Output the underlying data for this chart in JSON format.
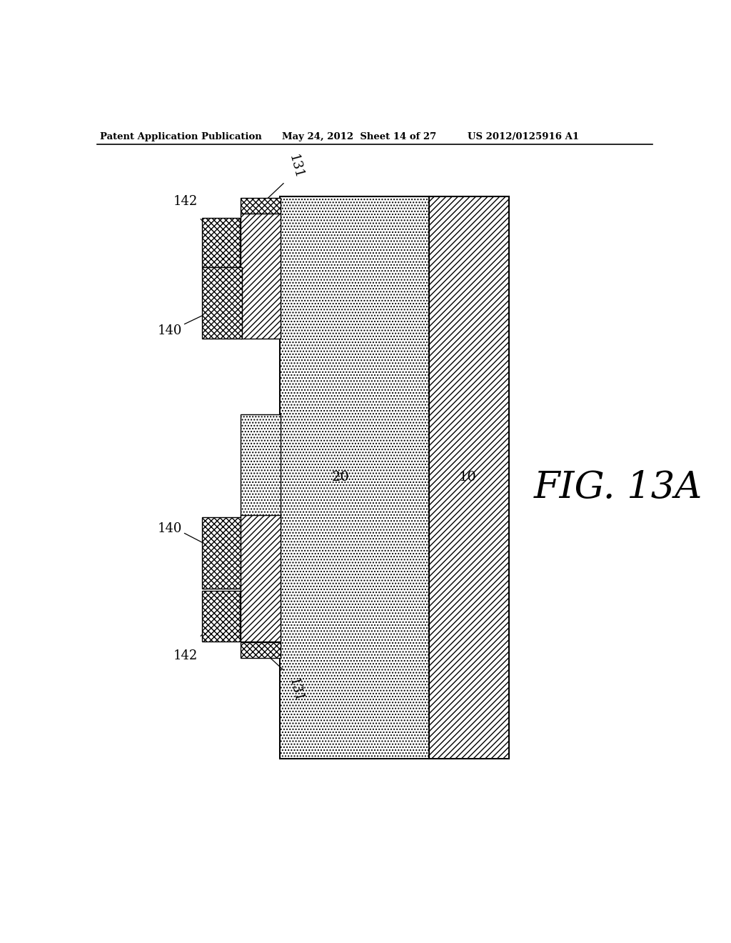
{
  "header_left": "Patent Application Publication",
  "header_mid": "May 24, 2012  Sheet 14 of 27",
  "header_right": "US 2012/0125916 A1",
  "fig_label": "FIG. 13A",
  "bg_color": "#ffffff",
  "line_color": "#000000"
}
